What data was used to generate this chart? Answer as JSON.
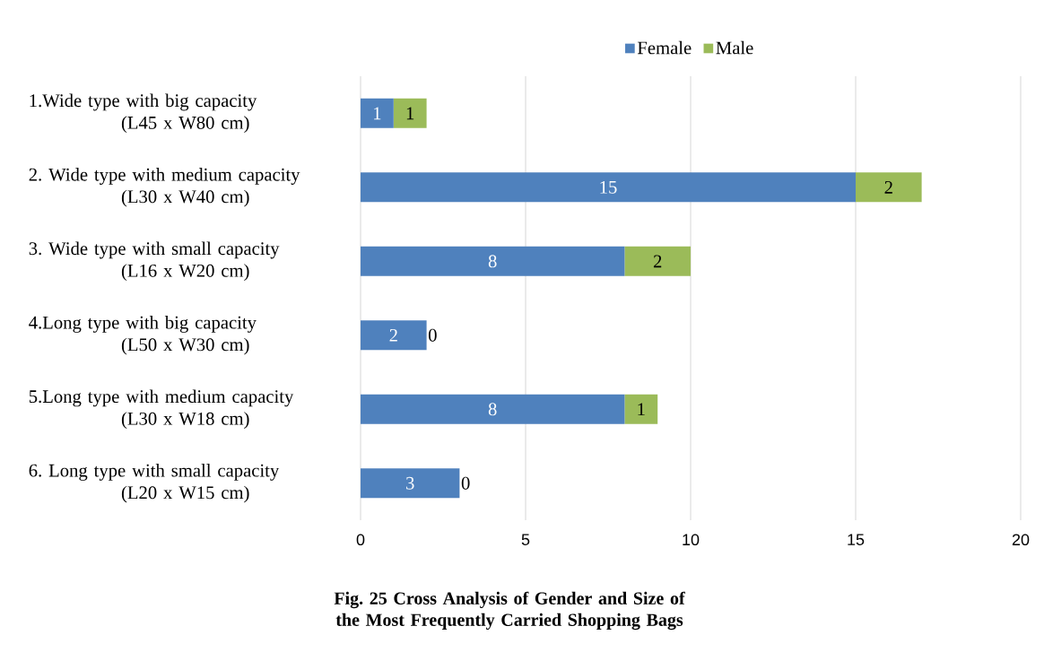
{
  "chart_data": {
    "type": "bar",
    "orientation": "horizontal",
    "stacked": true,
    "title": "Fig. 25 Cross Analysis of Gender and Size of the Most Frequently Carried Shopping Bags",
    "categories": [
      "1.Wide type with big capacity (L45 x W80 cm)",
      "2. Wide type with medium capacity (L30 x W40 cm)",
      "3. Wide type with small capacity (L16 x W20 cm)",
      "4.Long type with big capacity (L50 x W30 cm)",
      "5.Long type with medium capacity (L30 x W18 cm)",
      "6. Long type with small capacity (L20 x W15 cm)"
    ],
    "series": [
      {
        "name": "Female",
        "color": "#4f81bd",
        "values": [
          1,
          15,
          8,
          2,
          8,
          3
        ]
      },
      {
        "name": "Male",
        "color": "#9bbb59",
        "values": [
          1,
          2,
          2,
          0,
          1,
          0
        ]
      }
    ],
    "xlim": [
      0,
      20
    ],
    "xticks": [
      0,
      5,
      10,
      15,
      20
    ],
    "grid": "x",
    "legend": "top",
    "data_labels": true
  }
}
